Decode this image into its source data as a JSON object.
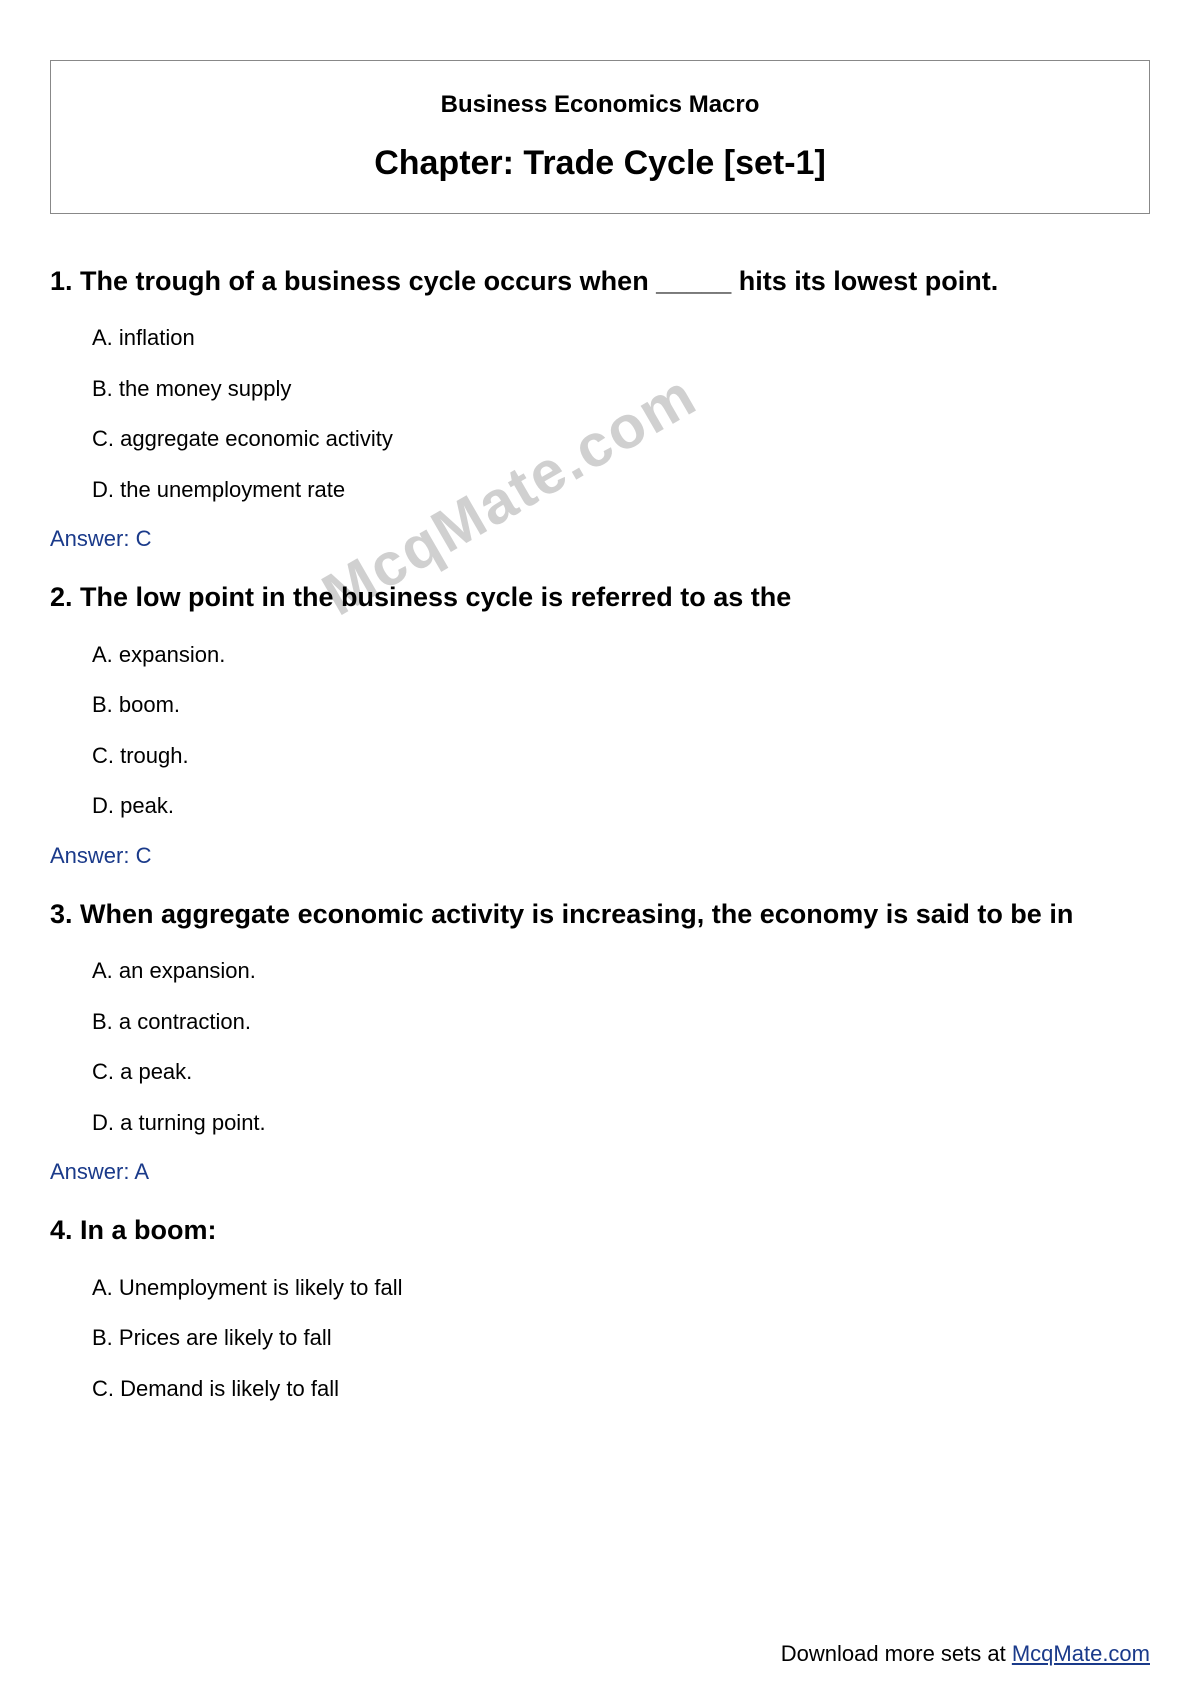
{
  "header": {
    "subject": "Business Economics Macro",
    "chapter": "Chapter: Trade Cycle [set-1]"
  },
  "watermark": "McqMate.com",
  "questions": [
    {
      "number": "1.",
      "text": "The trough of a business cycle occurs when _____ hits its lowest point.",
      "options": [
        "A. inflation",
        "B. the money supply",
        "C. aggregate economic activity",
        "D. the unemployment rate"
      ],
      "answer": "Answer: C"
    },
    {
      "number": "2.",
      "text": "The low point in the business cycle is referred to as the",
      "options": [
        "A. expansion.",
        "B. boom.",
        "C. trough.",
        "D. peak."
      ],
      "answer": "Answer: C"
    },
    {
      "number": "3.",
      "text": "When aggregate economic activity is increasing, the economy is said to be in",
      "options": [
        "A. an expansion.",
        "B. a contraction.",
        "C. a peak.",
        "D. a turning point."
      ],
      "answer": "Answer: A"
    },
    {
      "number": "4.",
      "text": "In a boom:",
      "options": [
        "A. Unemployment is likely to fall",
        "B. Prices are likely to fall",
        "C. Demand is likely to fall"
      ],
      "answer": null
    }
  ],
  "footer": {
    "text": "Download more sets at ",
    "link_text": "McqMate.com"
  },
  "colors": {
    "text": "#000000",
    "answer": "#1a3a8a",
    "link": "#1a3a8a",
    "watermark": "#d0d0d0",
    "border": "#888888",
    "background": "#ffffff"
  }
}
